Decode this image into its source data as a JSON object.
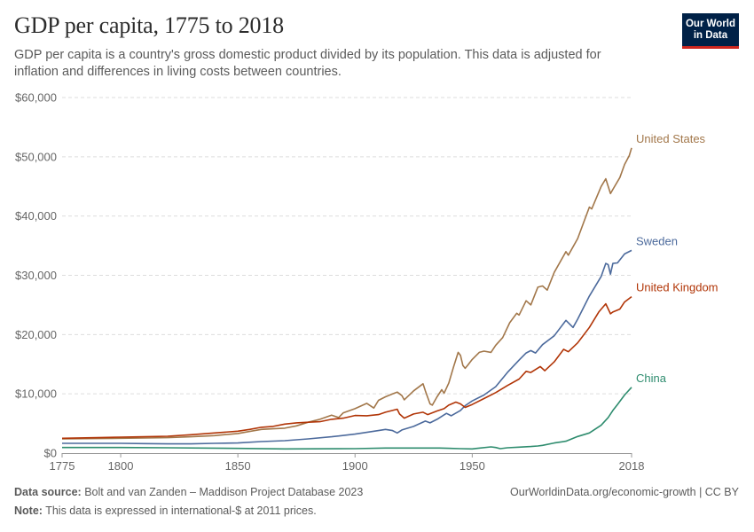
{
  "header": {
    "title": "GDP per capita, 1775 to 2018",
    "subtitle": "GDP per capita is a country's gross domestic product divided by its population. This data is adjusted for inflation and differences in living costs between countries.",
    "logo_line1": "Our World",
    "logo_line2": "in Data"
  },
  "footer": {
    "source_label": "Data source:",
    "source_text": " Bolt and van Zanden – Maddison Project Database 2023",
    "note_label": "Note:",
    "note_text": " This data is expressed in international-$ at 2011 prices.",
    "url_text": "OurWorldinData.org/economic-growth | CC BY"
  },
  "colors": {
    "United States": "#a2774a",
    "Sweden": "#4c6a9c",
    "United Kingdom": "#b13507",
    "China": "#2e8c6e",
    "grid": "#dddddd",
    "axis": "#999999"
  },
  "chart_data": {
    "type": "line",
    "title": "GDP per capita, 1775 to 2018",
    "xlabel": "",
    "ylabel": "",
    "xlim": [
      1775,
      2018
    ],
    "ylim": [
      0,
      60000
    ],
    "x_ticks": [
      1775,
      1800,
      1850,
      1900,
      1950,
      2018
    ],
    "x_tick_labels": [
      "1775",
      "1800",
      "1850",
      "1900",
      "1950",
      "2018"
    ],
    "y_ticks": [
      0,
      10000,
      20000,
      30000,
      40000,
      50000,
      60000
    ],
    "y_tick_labels": [
      "$0",
      "$10,000",
      "$20,000",
      "$30,000",
      "$40,000",
      "$50,000",
      "$60,000"
    ],
    "grid": "horizontal dashed",
    "legend": "labels at line ends",
    "series": [
      {
        "name": "United States",
        "points": [
          [
            1775,
            2400
          ],
          [
            1790,
            2450
          ],
          [
            1800,
            2500
          ],
          [
            1810,
            2550
          ],
          [
            1820,
            2600
          ],
          [
            1830,
            2750
          ],
          [
            1840,
            2950
          ],
          [
            1850,
            3300
          ],
          [
            1855,
            3650
          ],
          [
            1860,
            4000
          ],
          [
            1865,
            4100
          ],
          [
            1870,
            4200
          ],
          [
            1875,
            4600
          ],
          [
            1880,
            5200
          ],
          [
            1885,
            5700
          ],
          [
            1890,
            6400
          ],
          [
            1893,
            6000
          ],
          [
            1895,
            6800
          ],
          [
            1900,
            7500
          ],
          [
            1905,
            8400
          ],
          [
            1908,
            7600
          ],
          [
            1910,
            8900
          ],
          [
            1913,
            9500
          ],
          [
            1916,
            10000
          ],
          [
            1918,
            10300
          ],
          [
            1920,
            9700
          ],
          [
            1921,
            9000
          ],
          [
            1925,
            10500
          ],
          [
            1929,
            11700
          ],
          [
            1930,
            10500
          ],
          [
            1932,
            8300
          ],
          [
            1933,
            8100
          ],
          [
            1935,
            9500
          ],
          [
            1937,
            10700
          ],
          [
            1938,
            10100
          ],
          [
            1940,
            11800
          ],
          [
            1942,
            14500
          ],
          [
            1944,
            17000
          ],
          [
            1945,
            16500
          ],
          [
            1946,
            14800
          ],
          [
            1947,
            14300
          ],
          [
            1948,
            14800
          ],
          [
            1950,
            15800
          ],
          [
            1953,
            17000
          ],
          [
            1955,
            17200
          ],
          [
            1958,
            17000
          ],
          [
            1960,
            18200
          ],
          [
            1963,
            19500
          ],
          [
            1966,
            22000
          ],
          [
            1969,
            23600
          ],
          [
            1970,
            23300
          ],
          [
            1973,
            25700
          ],
          [
            1975,
            25000
          ],
          [
            1978,
            28000
          ],
          [
            1980,
            28200
          ],
          [
            1982,
            27500
          ],
          [
            1985,
            30500
          ],
          [
            1990,
            34000
          ],
          [
            1991,
            33400
          ],
          [
            1995,
            36200
          ],
          [
            2000,
            41500
          ],
          [
            2001,
            41200
          ],
          [
            2005,
            45000
          ],
          [
            2007,
            46300
          ],
          [
            2009,
            43800
          ],
          [
            2010,
            44500
          ],
          [
            2013,
            46500
          ],
          [
            2015,
            48700
          ],
          [
            2017,
            50200
          ],
          [
            2018,
            51500
          ]
        ]
      },
      {
        "name": "Sweden",
        "points": [
          [
            1775,
            1650
          ],
          [
            1790,
            1650
          ],
          [
            1800,
            1650
          ],
          [
            1810,
            1600
          ],
          [
            1820,
            1550
          ],
          [
            1830,
            1550
          ],
          [
            1840,
            1650
          ],
          [
            1850,
            1700
          ],
          [
            1860,
            1950
          ],
          [
            1870,
            2100
          ],
          [
            1880,
            2400
          ],
          [
            1890,
            2750
          ],
          [
            1900,
            3200
          ],
          [
            1905,
            3500
          ],
          [
            1910,
            3800
          ],
          [
            1913,
            4000
          ],
          [
            1916,
            3800
          ],
          [
            1918,
            3400
          ],
          [
            1920,
            3900
          ],
          [
            1925,
            4500
          ],
          [
            1930,
            5400
          ],
          [
            1932,
            5100
          ],
          [
            1935,
            5700
          ],
          [
            1939,
            6700
          ],
          [
            1941,
            6300
          ],
          [
            1945,
            7200
          ],
          [
            1947,
            8000
          ],
          [
            1950,
            8800
          ],
          [
            1955,
            9800
          ],
          [
            1960,
            11200
          ],
          [
            1965,
            13600
          ],
          [
            1970,
            15700
          ],
          [
            1973,
            16900
          ],
          [
            1975,
            17300
          ],
          [
            1977,
            16900
          ],
          [
            1980,
            18300
          ],
          [
            1985,
            19800
          ],
          [
            1990,
            22400
          ],
          [
            1993,
            21200
          ],
          [
            1995,
            22600
          ],
          [
            2000,
            26500
          ],
          [
            2005,
            29800
          ],
          [
            2007,
            32000
          ],
          [
            2008,
            31800
          ],
          [
            2009,
            30200
          ],
          [
            2010,
            32000
          ],
          [
            2012,
            32100
          ],
          [
            2015,
            33600
          ],
          [
            2018,
            34200
          ]
        ]
      },
      {
        "name": "United Kingdom",
        "points": [
          [
            1775,
            2500
          ],
          [
            1790,
            2600
          ],
          [
            1800,
            2700
          ],
          [
            1810,
            2750
          ],
          [
            1820,
            2850
          ],
          [
            1830,
            3100
          ],
          [
            1840,
            3400
          ],
          [
            1850,
            3700
          ],
          [
            1855,
            4000
          ],
          [
            1860,
            4350
          ],
          [
            1865,
            4500
          ],
          [
            1870,
            4900
          ],
          [
            1875,
            5100
          ],
          [
            1880,
            5200
          ],
          [
            1885,
            5300
          ],
          [
            1890,
            5700
          ],
          [
            1895,
            5900
          ],
          [
            1900,
            6350
          ],
          [
            1905,
            6300
          ],
          [
            1910,
            6500
          ],
          [
            1913,
            6900
          ],
          [
            1916,
            7200
          ],
          [
            1918,
            7400
          ],
          [
            1919,
            6600
          ],
          [
            1921,
            5900
          ],
          [
            1925,
            6600
          ],
          [
            1929,
            6900
          ],
          [
            1931,
            6500
          ],
          [
            1935,
            7100
          ],
          [
            1938,
            7500
          ],
          [
            1940,
            8100
          ],
          [
            1943,
            8600
          ],
          [
            1945,
            8300
          ],
          [
            1947,
            7700
          ],
          [
            1950,
            8200
          ],
          [
            1955,
            9200
          ],
          [
            1960,
            10200
          ],
          [
            1965,
            11400
          ],
          [
            1970,
            12500
          ],
          [
            1973,
            13800
          ],
          [
            1975,
            13600
          ],
          [
            1979,
            14600
          ],
          [
            1981,
            13900
          ],
          [
            1985,
            15400
          ],
          [
            1989,
            17500
          ],
          [
            1991,
            17100
          ],
          [
            1995,
            18600
          ],
          [
            2000,
            21200
          ],
          [
            2004,
            23800
          ],
          [
            2007,
            25200
          ],
          [
            2009,
            23500
          ],
          [
            2010,
            23800
          ],
          [
            2013,
            24300
          ],
          [
            2015,
            25500
          ],
          [
            2018,
            26400
          ]
        ]
      },
      {
        "name": "China",
        "points": [
          [
            1775,
            950
          ],
          [
            1800,
            950
          ],
          [
            1820,
            900
          ],
          [
            1850,
            800
          ],
          [
            1870,
            700
          ],
          [
            1900,
            750
          ],
          [
            1913,
            850
          ],
          [
            1929,
            850
          ],
          [
            1936,
            850
          ],
          [
            1945,
            750
          ],
          [
            1950,
            700
          ],
          [
            1952,
            800
          ],
          [
            1958,
            1050
          ],
          [
            1960,
            950
          ],
          [
            1962,
            750
          ],
          [
            1965,
            900
          ],
          [
            1970,
            1000
          ],
          [
            1975,
            1100
          ],
          [
            1978,
            1200
          ],
          [
            1980,
            1300
          ],
          [
            1985,
            1700
          ],
          [
            1990,
            2000
          ],
          [
            1995,
            2800
          ],
          [
            2000,
            3400
          ],
          [
            2005,
            4700
          ],
          [
            2008,
            6000
          ],
          [
            2010,
            7200
          ],
          [
            2012,
            8200
          ],
          [
            2015,
            9800
          ],
          [
            2018,
            11100
          ]
        ]
      }
    ]
  }
}
